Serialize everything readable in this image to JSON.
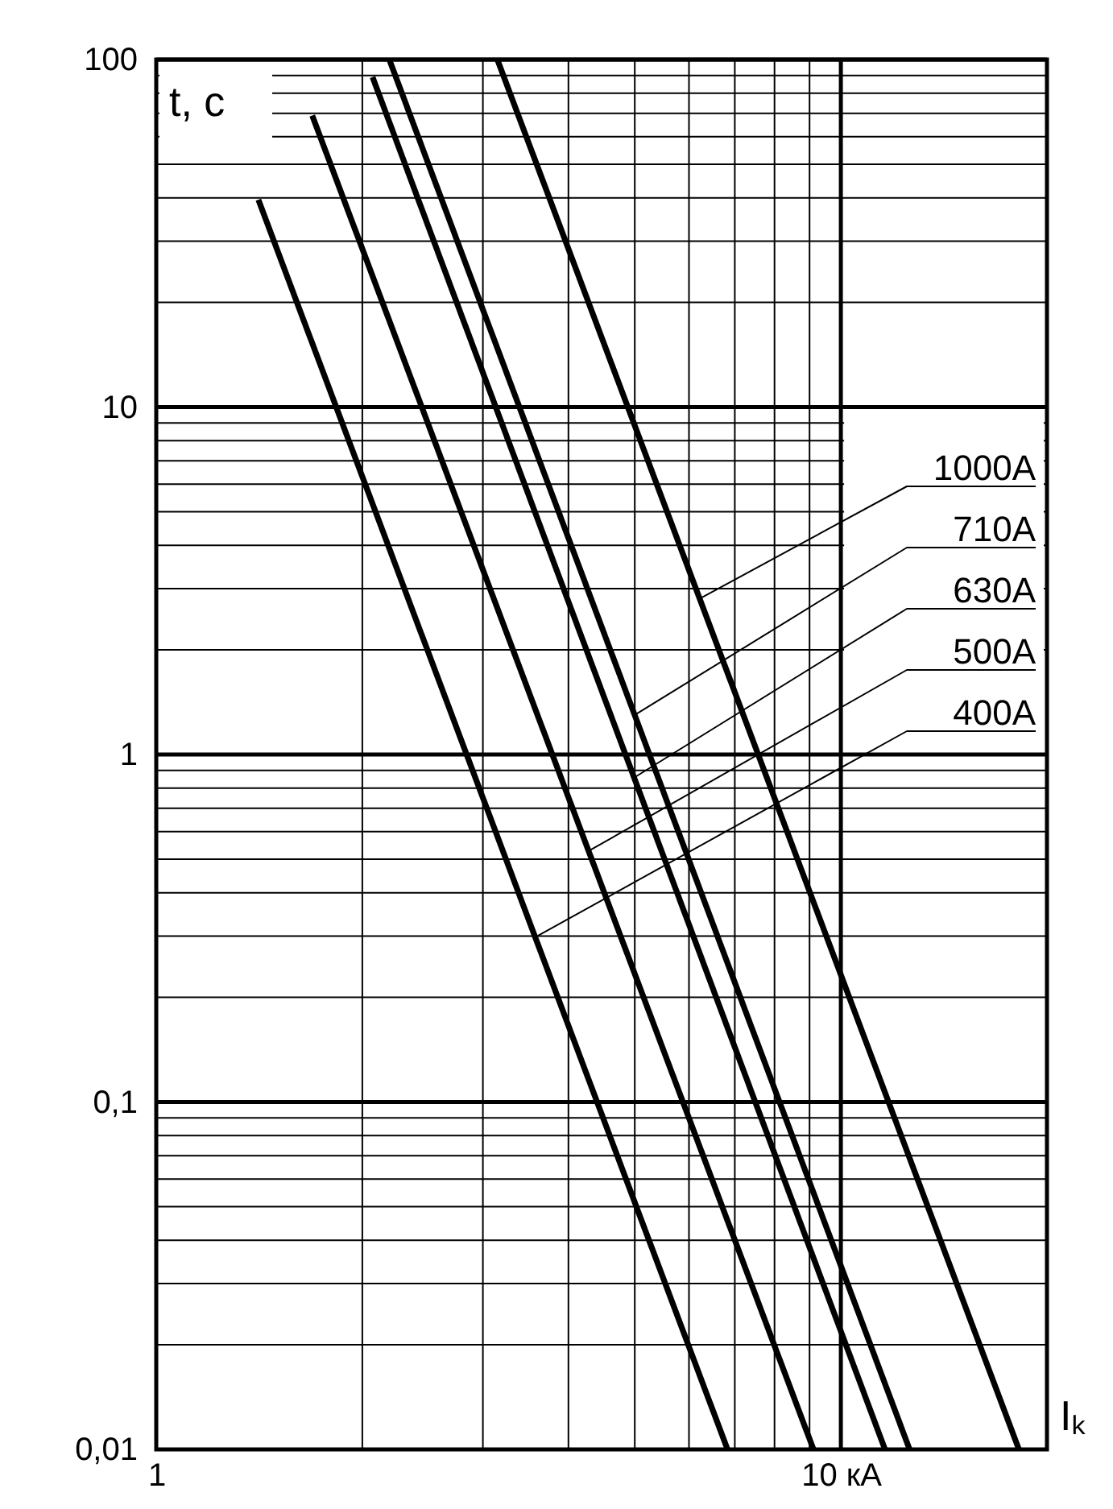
{
  "chart_data": {
    "type": "line",
    "xlabel": "Iₖ",
    "ylabel": "t, с",
    "log": "xy",
    "grid": true,
    "line_style": "solid",
    "marker": "none",
    "xlim": [
      1,
      20
    ],
    "ylim": [
      0.01,
      100
    ],
    "xticks": [
      1,
      {
        "value": 2,
        "label": null
      },
      {
        "value": 3,
        "label": null
      },
      {
        "value": 4,
        "label": null
      },
      {
        "value": 5,
        "label": null
      },
      {
        "value": 6,
        "label": null
      },
      {
        "value": 7,
        "label": null
      },
      {
        "value": 8,
        "label": null
      },
      {
        "value": 9,
        "label": null
      },
      {
        "value": 10,
        "label": "10 кА"
      }
    ],
    "yticks": [
      {
        "value": 0.01,
        "label": "0,01"
      },
      {
        "value": 0.02,
        "label": null
      },
      {
        "value": 0.03,
        "label": null
      },
      {
        "value": 0.04,
        "label": null
      },
      {
        "value": 0.05,
        "label": null
      },
      {
        "value": 0.06,
        "label": null
      },
      {
        "value": 0.07,
        "label": null
      },
      {
        "value": 0.08,
        "label": null
      },
      {
        "value": 0.09,
        "label": null
      },
      {
        "value": 0.1,
        "label": "0,1"
      },
      {
        "value": 0.2,
        "label": null
      },
      {
        "value": 0.3,
        "label": null
      },
      {
        "value": 0.4,
        "label": null
      },
      {
        "value": 0.5,
        "label": null
      },
      {
        "value": 0.6,
        "label": null
      },
      {
        "value": 0.7,
        "label": null
      },
      {
        "value": 0.8,
        "label": null
      },
      {
        "value": 0.9,
        "label": null
      },
      1,
      {
        "value": 2,
        "label": null
      },
      {
        "value": 3,
        "label": null
      },
      {
        "value": 4,
        "label": null
      },
      {
        "value": 5,
        "label": null
      },
      {
        "value": 6,
        "label": null
      },
      {
        "value": 7,
        "label": null
      },
      {
        "value": 8,
        "label": null
      },
      {
        "value": 9,
        "label": null
      },
      10,
      {
        "value": 20,
        "label": null
      },
      {
        "value": 30,
        "label": null
      },
      {
        "value": 40,
        "label": null
      },
      {
        "value": 50,
        "label": null
      },
      {
        "value": 60,
        "label": null
      },
      {
        "value": 70,
        "label": null
      },
      {
        "value": 80,
        "label": null
      },
      {
        "value": 90,
        "label": null
      },
      100
    ],
    "series": [
      {
        "color": "#000000",
        "x": [
          1.41,
          6.83
        ],
        "values": [
          39.5,
          0.01
        ]
      },
      {
        "color": "#000000",
        "x": [
          1.69,
          9.12
        ],
        "values": [
          69,
          0.01
        ]
      },
      {
        "color": "#000000",
        "x": [
          2.07,
          11.6
        ],
        "values": [
          89,
          0.01
        ]
      },
      {
        "color": "#000000",
        "x": [
          2.19,
          12.6
        ],
        "values": [
          100,
          0.01
        ]
      },
      {
        "color": "#000000",
        "x": [
          3.15,
          18.2
        ],
        "values": [
          100,
          0.01
        ]
      }
    ],
    "annotations": [
      {
        "text": "400A",
        "x": 3.6,
        "y": 0.3
      },
      {
        "text": "500A",
        "x": 4.3,
        "y": 0.53
      },
      {
        "text": "630A",
        "x": 5.0,
        "y": 0.86
      },
      {
        "text": "710A",
        "x": 5.0,
        "y": 1.3
      },
      {
        "text": "1000A",
        "x": 6.2,
        "y": 2.8
      }
    ]
  }
}
